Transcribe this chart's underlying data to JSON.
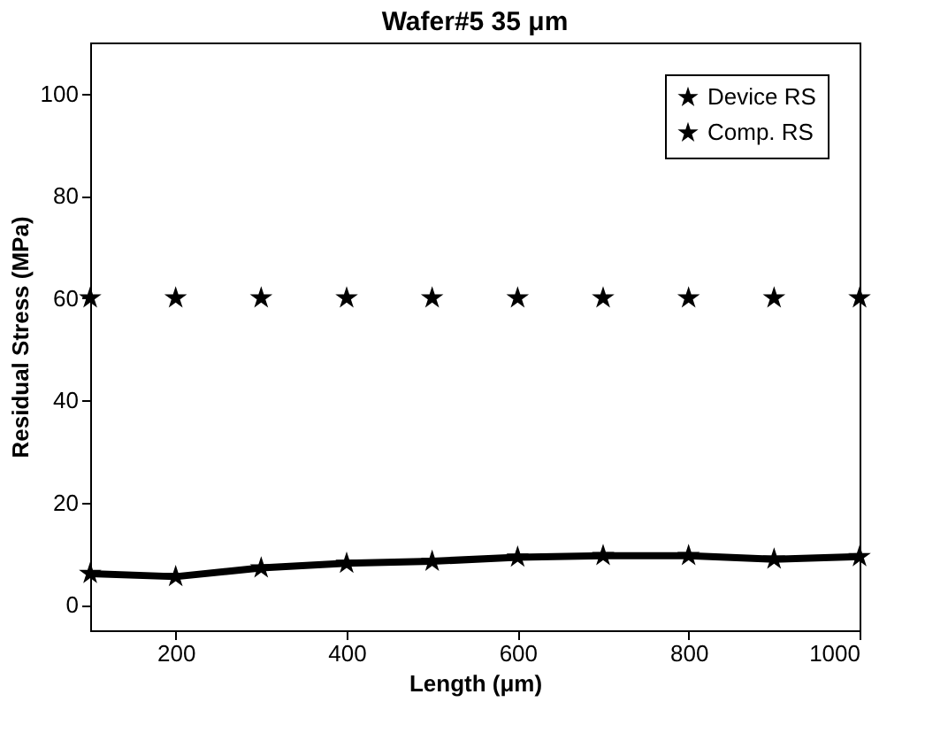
{
  "chart_data": {
    "type": "line",
    "title": "Wafer#5 35 μm",
    "xlabel": "Length (μm)",
    "ylabel": "Residual Stress (MPa)",
    "x": [
      100,
      200,
      300,
      400,
      500,
      600,
      700,
      800,
      900,
      1000
    ],
    "series": [
      {
        "name": "Device RS",
        "color": "#000000",
        "type": "line",
        "marker": "star",
        "values": [
          6.1,
          5.5,
          7.2,
          8.1,
          8.5,
          9.3,
          9.6,
          9.6,
          8.9,
          9.4
        ]
      },
      {
        "name": "Comp. RS",
        "color": "#000000",
        "type": "scatter",
        "marker": "star",
        "values": [
          60,
          60,
          60,
          60,
          60,
          60,
          60,
          60,
          60,
          60
        ]
      }
    ],
    "xlim": [
      100,
      1000
    ],
    "xticks": [
      200,
      400,
      600,
      800,
      1000
    ],
    "ylim": [
      -5,
      110
    ],
    "yticks": [
      0,
      20,
      40,
      60,
      80,
      100
    ],
    "grid": false,
    "legend": "top right"
  }
}
